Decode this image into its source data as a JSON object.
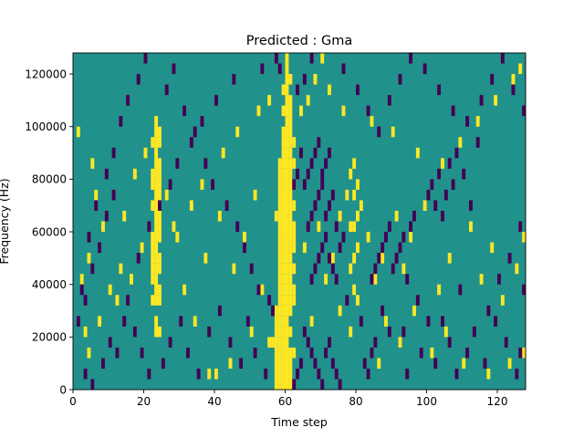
{
  "chart_data": {
    "type": "heatmap",
    "title": "Predicted : Gma",
    "xlabel": "Time step",
    "ylabel": "Frequency (Hz)",
    "xlim": [
      0,
      128
    ],
    "ylim": [
      0,
      128000
    ],
    "x_ticks": [
      "0",
      "20",
      "40",
      "60",
      "80",
      "100",
      "120"
    ],
    "y_ticks": [
      "0",
      "20000",
      "40000",
      "60000",
      "80000",
      "100000",
      "120000"
    ],
    "n_time_steps": 128,
    "n_freq_bins": 32,
    "levels": {
      "low": -1,
      "mid": 0,
      "high": 1
    },
    "colors": {
      "low": "#440154",
      "mid": "#21918c",
      "high": "#fde725"
    },
    "high_cells": [
      [
        57,
        0
      ],
      [
        58,
        0
      ],
      [
        59,
        0
      ],
      [
        60,
        0
      ],
      [
        61,
        0
      ],
      [
        57,
        1
      ],
      [
        58,
        1
      ],
      [
        59,
        1
      ],
      [
        60,
        1
      ],
      [
        61,
        1
      ],
      [
        57,
        2
      ],
      [
        58,
        2
      ],
      [
        59,
        2
      ],
      [
        60,
        2
      ],
      [
        61,
        2
      ],
      [
        57,
        3
      ],
      [
        58,
        3
      ],
      [
        59,
        3
      ],
      [
        60,
        3
      ],
      [
        61,
        3
      ],
      [
        56,
        4
      ],
      [
        57,
        4
      ],
      [
        58,
        4
      ],
      [
        59,
        4
      ],
      [
        60,
        4
      ],
      [
        57,
        5
      ],
      [
        58,
        5
      ],
      [
        59,
        5
      ],
      [
        60,
        5
      ],
      [
        61,
        5
      ],
      [
        57,
        6
      ],
      [
        58,
        6
      ],
      [
        59,
        6
      ],
      [
        60,
        6
      ],
      [
        57,
        7
      ],
      [
        58,
        7
      ],
      [
        59,
        7
      ],
      [
        60,
        7
      ],
      [
        61,
        7
      ],
      [
        58,
        8
      ],
      [
        59,
        8
      ],
      [
        60,
        8
      ],
      [
        61,
        8
      ],
      [
        62,
        8
      ],
      [
        58,
        9
      ],
      [
        59,
        9
      ],
      [
        60,
        9
      ],
      [
        61,
        9
      ],
      [
        62,
        9
      ],
      [
        58,
        10
      ],
      [
        59,
        10
      ],
      [
        60,
        10
      ],
      [
        61,
        10
      ],
      [
        58,
        11
      ],
      [
        59,
        11
      ],
      [
        60,
        11
      ],
      [
        61,
        11
      ],
      [
        62,
        11
      ],
      [
        58,
        12
      ],
      [
        59,
        12
      ],
      [
        60,
        12
      ],
      [
        61,
        12
      ],
      [
        58,
        13
      ],
      [
        59,
        13
      ],
      [
        60,
        13
      ],
      [
        61,
        13
      ],
      [
        62,
        13
      ],
      [
        58,
        14
      ],
      [
        59,
        14
      ],
      [
        60,
        14
      ],
      [
        61,
        14
      ],
      [
        62,
        14
      ],
      [
        58,
        15
      ],
      [
        59,
        15
      ],
      [
        60,
        15
      ],
      [
        61,
        15
      ],
      [
        62,
        15
      ],
      [
        57,
        16
      ],
      [
        58,
        16
      ],
      [
        59,
        16
      ],
      [
        60,
        16
      ],
      [
        61,
        16
      ],
      [
        58,
        17
      ],
      [
        59,
        17
      ],
      [
        60,
        17
      ],
      [
        61,
        17
      ],
      [
        62,
        17
      ],
      [
        58,
        18
      ],
      [
        59,
        18
      ],
      [
        60,
        18
      ],
      [
        61,
        18
      ],
      [
        58,
        19
      ],
      [
        59,
        19
      ],
      [
        60,
        19
      ],
      [
        61,
        19
      ],
      [
        62,
        19
      ],
      [
        58,
        20
      ],
      [
        59,
        20
      ],
      [
        60,
        20
      ],
      [
        61,
        20
      ],
      [
        58,
        21
      ],
      [
        59,
        21
      ],
      [
        60,
        21
      ],
      [
        61,
        21
      ],
      [
        62,
        21
      ],
      [
        59,
        22
      ],
      [
        60,
        22
      ],
      [
        61,
        22
      ],
      [
        59,
        23
      ],
      [
        60,
        23
      ],
      [
        61,
        23
      ],
      [
        62,
        23
      ],
      [
        59,
        24
      ],
      [
        60,
        24
      ],
      [
        61,
        24
      ],
      [
        60,
        25
      ],
      [
        61,
        25
      ],
      [
        59,
        26
      ],
      [
        60,
        26
      ],
      [
        61,
        26
      ],
      [
        60,
        27
      ],
      [
        61,
        27
      ],
      [
        59,
        28
      ],
      [
        60,
        28
      ],
      [
        60,
        29
      ],
      [
        61,
        29
      ],
      [
        60,
        30
      ],
      [
        60,
        31
      ],
      [
        23,
        5
      ],
      [
        24,
        5
      ],
      [
        23,
        6
      ],
      [
        22,
        8
      ],
      [
        23,
        8
      ],
      [
        24,
        8
      ],
      [
        23,
        9
      ],
      [
        24,
        9
      ],
      [
        22,
        10
      ],
      [
        23,
        10
      ],
      [
        22,
        11
      ],
      [
        23,
        11
      ],
      [
        24,
        11
      ],
      [
        22,
        12
      ],
      [
        23,
        12
      ],
      [
        24,
        12
      ],
      [
        22,
        13
      ],
      [
        23,
        13
      ],
      [
        22,
        14
      ],
      [
        23,
        14
      ],
      [
        24,
        14
      ],
      [
        23,
        15
      ],
      [
        24,
        15
      ],
      [
        23,
        16
      ],
      [
        24,
        16
      ],
      [
        22,
        17
      ],
      [
        23,
        17
      ],
      [
        23,
        18
      ],
      [
        24,
        18
      ],
      [
        22,
        19
      ],
      [
        23,
        19
      ],
      [
        24,
        19
      ],
      [
        22,
        20
      ],
      [
        23,
        20
      ],
      [
        24,
        20
      ],
      [
        23,
        21
      ],
      [
        24,
        21
      ],
      [
        23,
        22
      ],
      [
        22,
        23
      ],
      [
        23,
        23
      ],
      [
        24,
        23
      ],
      [
        23,
        24
      ],
      [
        24,
        24
      ],
      [
        23,
        25
      ],
      [
        78,
        5
      ],
      [
        80,
        8
      ],
      [
        79,
        9
      ],
      [
        78,
        11
      ],
      [
        79,
        12
      ],
      [
        80,
        13
      ],
      [
        78,
        15
      ],
      [
        79,
        15
      ],
      [
        80,
        16
      ],
      [
        81,
        17
      ],
      [
        79,
        18
      ],
      [
        80,
        19
      ],
      [
        78,
        20
      ],
      [
        79,
        21
      ],
      [
        38,
        1
      ],
      [
        40,
        1
      ],
      [
        44,
        2
      ],
      [
        50,
        5
      ],
      [
        55,
        4
      ],
      [
        62,
        3
      ],
      [
        67,
        6
      ],
      [
        75,
        7
      ],
      [
        86,
        2
      ],
      [
        88,
        6
      ],
      [
        92,
        4
      ],
      [
        96,
        7
      ],
      [
        101,
        3
      ],
      [
        105,
        5
      ],
      [
        110,
        2
      ],
      [
        117,
        1
      ],
      [
        123,
        2
      ],
      [
        127,
        3
      ],
      [
        4,
        3
      ],
      [
        7,
        6
      ],
      [
        12,
        8
      ],
      [
        16,
        10
      ],
      [
        19,
        13
      ],
      [
        28,
        15
      ],
      [
        33,
        17
      ],
      [
        36,
        19
      ],
      [
        42,
        22
      ],
      [
        46,
        24
      ],
      [
        52,
        26
      ],
      [
        55,
        27
      ],
      [
        64,
        26
      ],
      [
        66,
        27
      ],
      [
        68,
        29
      ],
      [
        70,
        31
      ],
      [
        72,
        28
      ],
      [
        76,
        26
      ],
      [
        84,
        25
      ],
      [
        90,
        24
      ],
      [
        97,
        22
      ],
      [
        104,
        21
      ],
      [
        109,
        23
      ],
      [
        114,
        25
      ],
      [
        119,
        27
      ],
      [
        124,
        29
      ],
      [
        126,
        30
      ],
      [
        1,
        24
      ],
      [
        2,
        10
      ],
      [
        3,
        5
      ],
      [
        4,
        12
      ],
      [
        5,
        21
      ],
      [
        6,
        18
      ],
      [
        8,
        15
      ],
      [
        10,
        9
      ],
      [
        13,
        11
      ],
      [
        14,
        16
      ],
      [
        17,
        20
      ],
      [
        20,
        22
      ],
      [
        26,
        18
      ],
      [
        29,
        14
      ],
      [
        31,
        9
      ],
      [
        34,
        6
      ],
      [
        37,
        12
      ],
      [
        41,
        16
      ],
      [
        45,
        11
      ],
      [
        48,
        14
      ],
      [
        51,
        18
      ],
      [
        53,
        9
      ],
      [
        65,
        13
      ],
      [
        69,
        15
      ],
      [
        71,
        10
      ],
      [
        73,
        12
      ],
      [
        75,
        16
      ],
      [
        77,
        18
      ],
      [
        83,
        14
      ],
      [
        85,
        10
      ],
      [
        87,
        12
      ],
      [
        91,
        16
      ],
      [
        93,
        11
      ],
      [
        95,
        14
      ],
      [
        99,
        17
      ],
      [
        103,
        9
      ],
      [
        106,
        12
      ],
      [
        112,
        15
      ],
      [
        115,
        10
      ],
      [
        118,
        13
      ],
      [
        121,
        8
      ],
      [
        125,
        11
      ],
      [
        127,
        14
      ]
    ],
    "low_cells": [
      [
        3,
        1
      ],
      [
        5,
        0
      ],
      [
        8,
        2
      ],
      [
        10,
        4
      ],
      [
        12,
        3
      ],
      [
        14,
        6
      ],
      [
        17,
        5
      ],
      [
        19,
        3
      ],
      [
        21,
        1
      ],
      [
        25,
        2
      ],
      [
        27,
        4
      ],
      [
        30,
        6
      ],
      [
        32,
        3
      ],
      [
        35,
        1
      ],
      [
        38,
        5
      ],
      [
        41,
        7
      ],
      [
        44,
        4
      ],
      [
        47,
        2
      ],
      [
        49,
        6
      ],
      [
        51,
        3
      ],
      [
        54,
        1
      ],
      [
        56,
        7
      ],
      [
        62,
        0
      ],
      [
        63,
        1
      ],
      [
        64,
        2
      ],
      [
        65,
        5
      ],
      [
        66,
        4
      ],
      [
        67,
        3
      ],
      [
        68,
        2
      ],
      [
        69,
        1
      ],
      [
        70,
        0
      ],
      [
        71,
        3
      ],
      [
        72,
        4
      ],
      [
        73,
        2
      ],
      [
        74,
        1
      ],
      [
        75,
        0
      ],
      [
        82,
        2
      ],
      [
        83,
        1
      ],
      [
        84,
        3
      ],
      [
        85,
        4
      ],
      [
        89,
        5
      ],
      [
        94,
        1
      ],
      [
        98,
        3
      ],
      [
        100,
        6
      ],
      [
        102,
        2
      ],
      [
        106,
        4
      ],
      [
        108,
        1
      ],
      [
        111,
        3
      ],
      [
        113,
        5
      ],
      [
        116,
        2
      ],
      [
        119,
        6
      ],
      [
        122,
        4
      ],
      [
        125,
        1
      ],
      [
        126,
        3
      ],
      [
        67,
        10
      ],
      [
        68,
        11
      ],
      [
        69,
        12
      ],
      [
        70,
        13
      ],
      [
        71,
        14
      ],
      [
        72,
        12
      ],
      [
        73,
        11
      ],
      [
        74,
        10
      ],
      [
        75,
        13
      ],
      [
        76,
        14
      ],
      [
        66,
        15
      ],
      [
        67,
        16
      ],
      [
        68,
        17
      ],
      [
        69,
        18
      ],
      [
        70,
        19
      ],
      [
        71,
        16
      ],
      [
        72,
        17
      ],
      [
        73,
        18
      ],
      [
        74,
        15
      ],
      [
        65,
        19
      ],
      [
        66,
        20
      ],
      [
        67,
        21
      ],
      [
        68,
        22
      ],
      [
        69,
        23
      ],
      [
        70,
        20
      ],
      [
        71,
        21
      ],
      [
        72,
        22
      ],
      [
        84,
        10
      ],
      [
        85,
        11
      ],
      [
        86,
        12
      ],
      [
        87,
        13
      ],
      [
        88,
        14
      ],
      [
        89,
        15
      ],
      [
        90,
        11
      ],
      [
        91,
        12
      ],
      [
        92,
        13
      ],
      [
        93,
        14
      ],
      [
        94,
        10
      ],
      [
        95,
        15
      ],
      [
        96,
        16
      ],
      [
        100,
        18
      ],
      [
        101,
        19
      ],
      [
        102,
        17
      ],
      [
        103,
        20
      ],
      [
        104,
        16
      ],
      [
        105,
        18
      ],
      [
        106,
        21
      ],
      [
        107,
        19
      ],
      [
        108,
        22
      ],
      [
        110,
        20
      ],
      [
        112,
        17
      ],
      [
        114,
        23
      ],
      [
        2,
        9
      ],
      [
        4,
        14
      ],
      [
        6,
        17
      ],
      [
        9,
        20
      ],
      [
        11,
        22
      ],
      [
        13,
        25
      ],
      [
        15,
        27
      ],
      [
        18,
        29
      ],
      [
        20,
        31
      ],
      [
        26,
        28
      ],
      [
        28,
        30
      ],
      [
        31,
        26
      ],
      [
        34,
        24
      ],
      [
        37,
        21
      ],
      [
        39,
        19
      ],
      [
        43,
        17
      ],
      [
        46,
        15
      ],
      [
        48,
        13
      ],
      [
        50,
        11
      ],
      [
        52,
        9
      ],
      [
        55,
        8
      ],
      [
        63,
        28
      ],
      [
        65,
        29
      ],
      [
        67,
        31
      ],
      [
        76,
        30
      ],
      [
        80,
        28
      ],
      [
        83,
        26
      ],
      [
        86,
        24
      ],
      [
        89,
        27
      ],
      [
        92,
        29
      ],
      [
        95,
        31
      ],
      [
        99,
        30
      ],
      [
        103,
        28
      ],
      [
        107,
        26
      ],
      [
        111,
        25
      ],
      [
        115,
        27
      ],
      [
        118,
        29
      ],
      [
        121,
        31
      ],
      [
        124,
        28
      ],
      [
        127,
        26
      ],
      [
        1,
        6
      ],
      [
        3,
        8
      ],
      [
        5,
        11
      ],
      [
        7,
        13
      ],
      [
        9,
        16
      ],
      [
        11,
        18
      ],
      [
        15,
        8
      ],
      [
        18,
        12
      ],
      [
        21,
        15
      ],
      [
        24,
        17
      ],
      [
        27,
        19
      ],
      [
        29,
        21
      ],
      [
        33,
        23
      ],
      [
        36,
        25
      ],
      [
        40,
        27
      ],
      [
        45,
        29
      ],
      [
        53,
        30
      ],
      [
        57,
        31
      ],
      [
        58,
        30
      ],
      [
        62,
        19
      ],
      [
        63,
        20
      ],
      [
        64,
        22
      ],
      [
        77,
        8
      ],
      [
        81,
        6
      ],
      [
        87,
        7
      ],
      [
        93,
        5
      ],
      [
        97,
        8
      ],
      [
        104,
        6
      ],
      [
        109,
        9
      ],
      [
        117,
        7
      ],
      [
        120,
        10
      ],
      [
        123,
        12
      ],
      [
        126,
        15
      ],
      [
        127,
        9
      ]
    ]
  }
}
